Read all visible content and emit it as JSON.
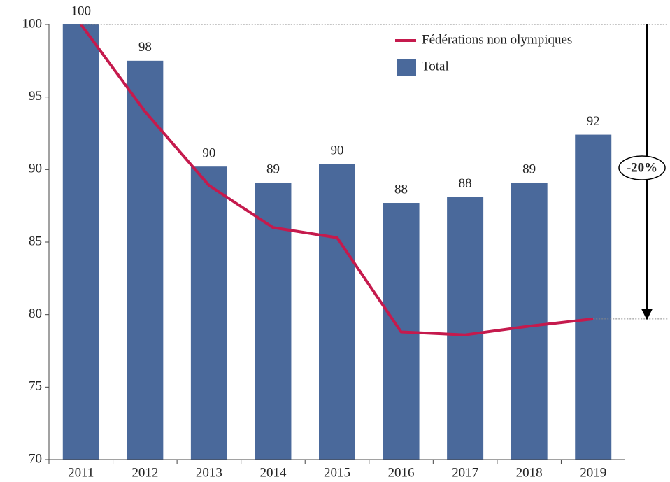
{
  "chart_data": {
    "type": "bar",
    "categories": [
      "2011",
      "2012",
      "2013",
      "2014",
      "2015",
      "2016",
      "2017",
      "2018",
      "2019"
    ],
    "series": [
      {
        "name": "Fédérations non olympiques",
        "type": "line",
        "color": "#c51a4d",
        "values": [
          100,
          94,
          88.9,
          86,
          85.3,
          78.8,
          78.6,
          79.2,
          79.7
        ]
      },
      {
        "name": "Total",
        "type": "bar",
        "color": "#4a699b",
        "values": [
          100,
          97.5,
          90.2,
          89.1,
          90.4,
          87.7,
          88.1,
          89.1,
          92.4
        ],
        "value_labels": [
          "100",
          "98",
          "90",
          "89",
          "90",
          "88",
          "88",
          "89",
          "92"
        ]
      }
    ],
    "ylim": [
      70,
      100
    ],
    "yticks": [
      70,
      75,
      80,
      85,
      90,
      95,
      100
    ],
    "annotation": "-20%",
    "legend": "upper right"
  }
}
